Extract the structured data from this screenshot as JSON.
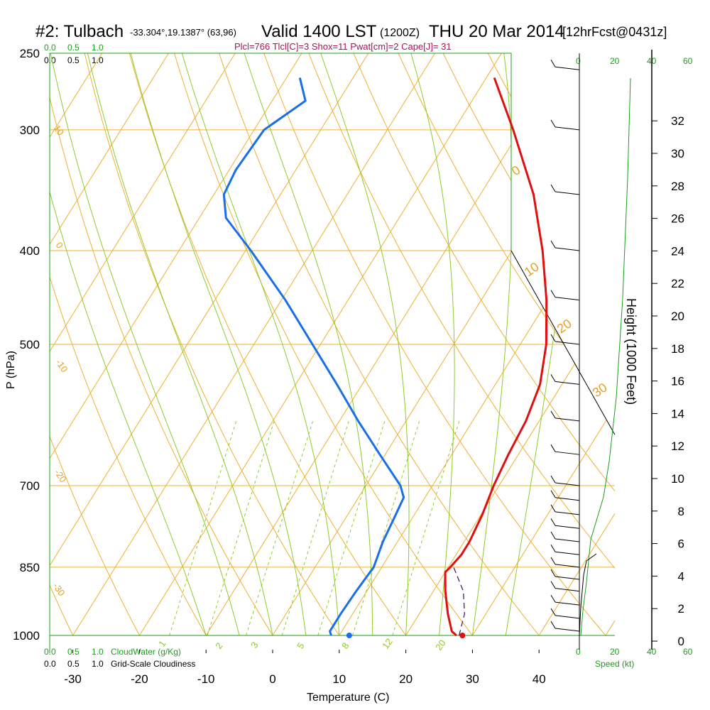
{
  "header": {
    "station": "#2: Tulbach",
    "coords": "-33.304°,19.1387° (63,96)",
    "valid": "Valid 1400 LST",
    "utc": "(1200Z)",
    "date": "THU 20 Mar 2014",
    "forecast": "[12hrFcst@0431z]",
    "indices": "Plcl=766 Tlcl[C]=3 Shox=11 Pwat[cm]=2 Cape[J]= 31"
  },
  "legend": {
    "cloud_scale_top_green": [
      "0.0",
      "0.5",
      "1.0"
    ],
    "cloud_scale_top_black": [
      "0.0",
      "0.5",
      "1.0"
    ],
    "cloud_scale_bottom_green": [
      "0.0",
      "0.5",
      "1.0"
    ],
    "cloud_scale_bottom_black": [
      "0.0",
      "0.5",
      "1.0"
    ],
    "cloudwater_label": "CloudWater (g/Kg)",
    "cloudiness_label": "Grid-Scale Cloudiness",
    "speed_label": "Speed (kt)",
    "speed_ticks_top": [
      "0",
      "20",
      "40",
      "60"
    ],
    "speed_ticks_bottom": [
      "0",
      "20",
      "40",
      "60"
    ]
  },
  "chart_data": {
    "type": "line",
    "title": "",
    "xlabel": "Temperature (C)",
    "ylabel": "P (hPa)",
    "y2label": "Height (1000 Feet)",
    "x_ticks": [
      -30,
      -20,
      -10,
      0,
      10,
      20,
      30,
      40
    ],
    "p_ticks": [
      250,
      300,
      400,
      500,
      700,
      850,
      1000
    ],
    "height_ticks": [
      0,
      2,
      4,
      6,
      8,
      10,
      12,
      14,
      16,
      18,
      20,
      22,
      24,
      26,
      28,
      30,
      32
    ],
    "series": [
      {
        "name": "",
        "color": "#e01010",
        "points": [
          [
            1000,
            27.6
          ],
          [
            990,
            26.5
          ],
          [
            950,
            24.3
          ],
          [
            900,
            21.8
          ],
          [
            860,
            20.0
          ],
          [
            850,
            20.3
          ],
          [
            825,
            20.8
          ],
          [
            800,
            20.8
          ],
          [
            750,
            20.2
          ],
          [
            700,
            19.2
          ],
          [
            650,
            18.5
          ],
          [
            600,
            18.0
          ],
          [
            550,
            16.7
          ],
          [
            500,
            13.9
          ],
          [
            450,
            9.8
          ],
          [
            400,
            4.6
          ],
          [
            350,
            -2.0
          ],
          [
            300,
            -11.1
          ],
          [
            265,
            -18.8
          ]
        ]
      },
      {
        "name": "",
        "color": "#1a6ee8",
        "points": [
          [
            1000,
            8.8
          ],
          [
            990,
            8.2
          ],
          [
            950,
            8.2
          ],
          [
            900,
            8.4
          ],
          [
            850,
            8.8
          ],
          [
            800,
            7.8
          ],
          [
            750,
            7.2
          ],
          [
            720,
            6.8
          ],
          [
            700,
            5.2
          ],
          [
            650,
            -0.8
          ],
          [
            600,
            -7.2
          ],
          [
            550,
            -13.8
          ],
          [
            500,
            -21.2
          ],
          [
            450,
            -29.4
          ],
          [
            400,
            -39.2
          ],
          [
            370,
            -46.0
          ],
          [
            350,
            -48.5
          ],
          [
            330,
            -49.0
          ],
          [
            300,
            -48.5
          ],
          [
            280,
            -45.0
          ],
          [
            265,
            -48.0
          ]
        ]
      }
    ],
    "surface_points": [
      {
        "p": 1000,
        "t": 28.5,
        "color": "#e01010"
      },
      {
        "p": 1000,
        "t": 11.5,
        "color": "#1a6ee8"
      }
    ],
    "parcel_dashed": [
      [
        1000,
        28.0
      ],
      [
        950,
        26.8
      ],
      [
        900,
        24.5
      ],
      [
        850,
        20.8
      ]
    ],
    "dry_adiabat_labels": [
      "-30",
      "-20",
      "-10",
      "0",
      "10",
      "20",
      "30"
    ],
    "mixing_ratio_labels": [
      "1",
      "2",
      "3",
      "5",
      "8",
      "12",
      "20"
    ],
    "isotherm_labels": [
      "10",
      "0",
      "-10",
      "-20",
      "-30"
    ],
    "wind_barbs": [
      {
        "p": 990,
        "h": 0.2
      },
      {
        "p": 960,
        "h": 1.0
      },
      {
        "p": 930,
        "h": 2.0
      },
      {
        "p": 900,
        "h": 3.0
      },
      {
        "p": 875,
        "h": 3.8
      },
      {
        "p": 850,
        "h": 4.8
      },
      {
        "p": 825,
        "h": 5.5
      },
      {
        "p": 800,
        "h": 6.2
      },
      {
        "p": 775,
        "h": 7.2
      },
      {
        "p": 750,
        "h": 8.0
      },
      {
        "p": 725,
        "h": 8.8
      },
      {
        "p": 700,
        "h": 10.0
      },
      {
        "p": 650,
        "h": 12.0
      },
      {
        "p": 600,
        "h": 14.0
      },
      {
        "p": 550,
        "h": 16.0
      },
      {
        "p": 500,
        "h": 18.0
      },
      {
        "p": 450,
        "h": 20.5
      },
      {
        "p": 400,
        "h": 23.0
      },
      {
        "p": 350,
        "h": 26.0
      },
      {
        "p": 300,
        "h": 30.0
      },
      {
        "p": 260,
        "h": 33.0
      }
    ]
  },
  "colors": {
    "isobar": "#f0b030",
    "dry_adiabat": "#f0b030",
    "moist_adiabat": "#8ecb2a",
    "mixing_ratio": "#8ecb2a",
    "green_axis": "#1aa01a",
    "temperature": "#e01010",
    "dewpoint": "#1a6ee8",
    "indices": "#b0105a"
  }
}
